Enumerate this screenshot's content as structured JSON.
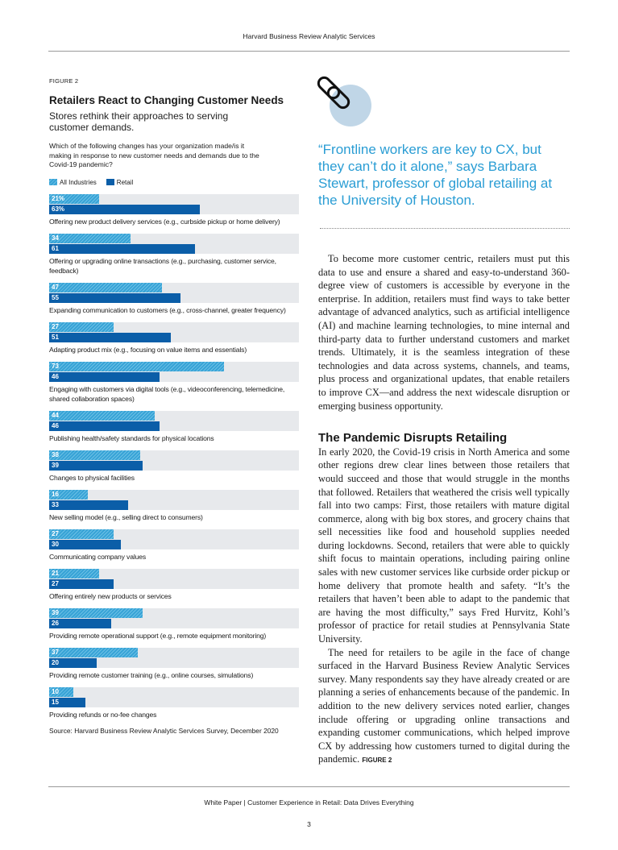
{
  "header": "Harvard Business Review Analytic Services",
  "figure": {
    "label": "FIGURE 2",
    "title": "Retailers React to Changing Customer Needs",
    "subtitle": "Stores rethink their approaches to serving customer demands.",
    "question": "Which of the following changes has your organization made/is it making in response to new customer needs and demands due to the Covid-19 pandemic?",
    "source": "Source: Harvard Business Review Analytic Services Survey, December 2020"
  },
  "chart_data": {
    "type": "bar",
    "orientation": "horizontal",
    "unit": "%",
    "xlim": [
      0,
      100
    ],
    "legend_position": "top-left",
    "colors": {
      "All Industries": "#37a3d6",
      "Retail": "#0b5ea8"
    },
    "categories": [
      "Offering new product delivery services (e.g., curbside pickup or home delivery)",
      "Offering or upgrading online transactions (e.g., purchasing, customer service, feedback)",
      "Expanding communication to customers (e.g., cross-channel, greater frequency)",
      "Adapting product mix (e.g., focusing on value items and essentials)",
      "Engaging with customers via digital tools (e.g., videoconferencing, telemedicine, shared collaboration spaces)",
      "Publishing health/safety standards for physical locations",
      "Changes to physical facilities",
      "New selling model (e.g., selling direct to consumers)",
      "Communicating company values",
      "Offering entirely new products or services",
      "Providing remote operational support (e.g., remote equipment monitoring)",
      "Providing remote customer training (e.g., online courses, simulations)",
      "Providing refunds or no-fee changes"
    ],
    "series": [
      {
        "name": "All Industries",
        "values": [
          21,
          34,
          47,
          27,
          73,
          44,
          38,
          16,
          27,
          21,
          39,
          37,
          10
        ]
      },
      {
        "name": "Retail",
        "values": [
          63,
          61,
          55,
          51,
          46,
          46,
          39,
          33,
          30,
          27,
          26,
          20,
          15
        ]
      }
    ]
  },
  "sidebar": {
    "icon": "chain-link-icon",
    "quote": "“Frontline workers are key to CX, but they can’t do it alone,” says Barbara Stewart, professor of global retailing at the University of Houston."
  },
  "article": {
    "p1": "To become more customer centric, retailers must put this data to use and ensure a shared and easy-to-understand 360-degree view of customers is accessible by everyone in the enterprise. In addition, retailers must find ways to take better advantage of advanced analytics, such as artificial intelligence (AI) and machine learning technologies, to mine internal and third-party data to further understand customers and market trends. Ultimately, it is the seamless integration of these technologies and data across systems, channels, and teams, plus process and organizational updates, that enable retailers to improve CX—and address the next widescale disruption or emerging business opportunity.",
    "heading": "The Pandemic Disrupts Retailing",
    "p2": "In early 2020, the Covid-19 crisis in North America and some other regions drew clear lines between those retailers that would succeed and those that would struggle in the months that followed. Retailers that weathered the crisis well typically fall into two camps: First, those retailers with mature digital commerce, along with big box stores, and grocery chains that sell necessities like food and household supplies needed during lockdowns. Second, retailers that were able to quickly shift focus to maintain operations, including pairing online sales with new customer services like curbside order pickup or home delivery that promote health and safety. “It’s the retailers that haven’t been able to adapt to the pandemic that are having the most difficulty,” says Fred Hurvitz, Kohl’s professor of practice for retail studies at Pennsylvania State University.",
    "p3": "The need for retailers to be agile in the face of change surfaced in the Harvard Business Review Analytic Services survey. Many respondents say they have already created or are planning a series of enhancements because of the pandemic. In addition to the new delivery services noted earlier, changes include offering or upgrading online transactions and expanding customer communications, which helped improve CX by addressing how customers turned to digital during the pandemic.",
    "p3_ref": "FIGURE 2"
  },
  "footer": "White Paper  |  Customer Experience in Retail: Data Drives Everything",
  "page_number": "3"
}
